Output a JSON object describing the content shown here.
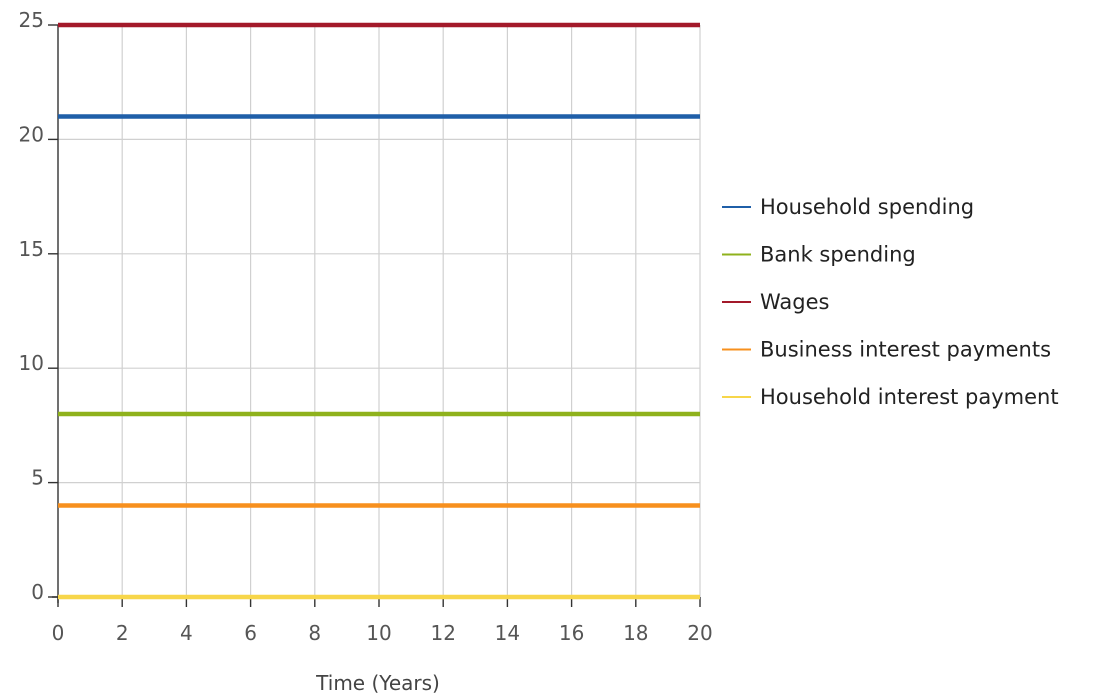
{
  "chart_data": {
    "type": "line",
    "xlabel": "Time (Years)",
    "ylabel": "",
    "xlim": [
      0,
      20
    ],
    "ylim": [
      0,
      25
    ],
    "x_ticks": [
      0,
      2,
      4,
      6,
      8,
      10,
      12,
      14,
      16,
      18,
      20
    ],
    "y_ticks": [
      0,
      5,
      10,
      15,
      20,
      25
    ],
    "grid": true,
    "legend_position": "right",
    "x": [
      0,
      20
    ],
    "series": [
      {
        "name": "Household spending",
        "color": "#1f5fa8",
        "values": [
          21,
          21
        ]
      },
      {
        "name": "Bank spending",
        "color": "#8fb21c",
        "values": [
          8,
          8
        ]
      },
      {
        "name": "Wages",
        "color": "#a3192a",
        "values": [
          25,
          25
        ]
      },
      {
        "name": "Business interest payments",
        "color": "#f7901e",
        "values": [
          4,
          4
        ]
      },
      {
        "name": "Household interest payment",
        "color": "#f7d64a",
        "values": [
          0,
          0
        ]
      }
    ]
  }
}
